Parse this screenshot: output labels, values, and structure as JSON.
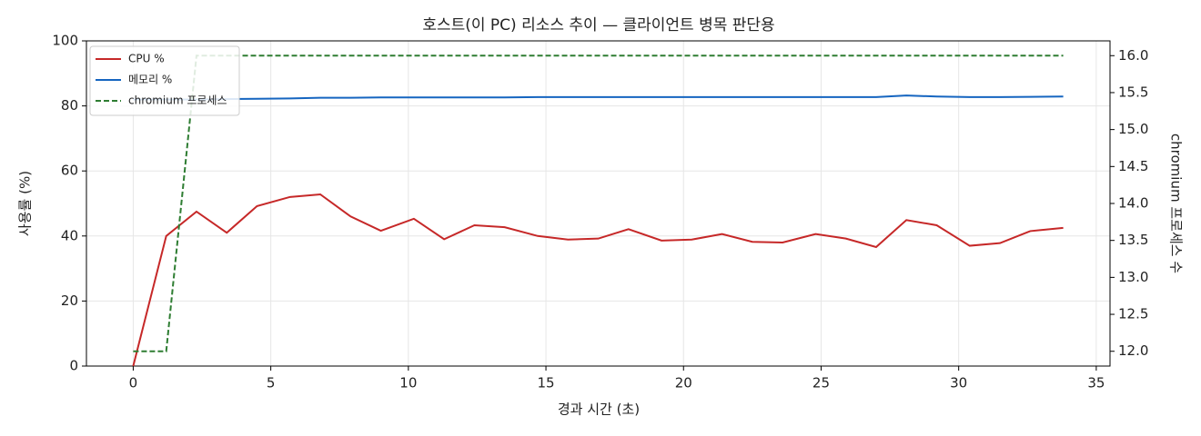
{
  "chart_data": {
    "type": "line",
    "title": "호스트(이 PC) 리소스 추이 — 클라이언트 병목 판단용",
    "xlabel": "경과 시간 (초)",
    "ylabel": "사용률 (%)",
    "y2label": "chromium 프로세스 수",
    "x": [
      0,
      1.2,
      2.3,
      3.4,
      4.5,
      5.7,
      6.8,
      7.9,
      9.0,
      10.2,
      11.3,
      12.4,
      13.5,
      14.7,
      15.8,
      16.9,
      18.0,
      19.2,
      20.3,
      21.4,
      22.5,
      23.6,
      24.8,
      25.9,
      27.0,
      28.1,
      29.2,
      30.4,
      31.5,
      32.6,
      33.8
    ],
    "series": [
      {
        "name": "CPU %",
        "color": "#c62828",
        "values": [
          0,
          40,
          47.5,
          41,
          49.2,
          52,
          52.8,
          46,
          41.6,
          45.3,
          39,
          43.3,
          42.7,
          40,
          38.9,
          39.2,
          42.1,
          38.6,
          38.9,
          40.6,
          38.2,
          38.0,
          40.6,
          39.2,
          36.6,
          44.9,
          43.3,
          37.0,
          37.8,
          41.5,
          42.5
        ]
      },
      {
        "name": "메모리 %",
        "color": "#1565c0",
        "values": [
          82,
          82,
          82,
          82.1,
          82.2,
          82.3,
          82.5,
          82.5,
          82.6,
          82.6,
          82.6,
          82.6,
          82.6,
          82.7,
          82.7,
          82.7,
          82.7,
          82.7,
          82.7,
          82.7,
          82.7,
          82.7,
          82.7,
          82.7,
          82.7,
          83.2,
          82.9,
          82.7,
          82.7,
          82.8,
          82.9
        ]
      },
      {
        "name": "chromium 프로세스",
        "color": "#2e7d32",
        "dashed": true,
        "axis": "y2",
        "values": [
          12,
          12,
          16,
          16,
          16,
          16,
          16,
          16,
          16,
          16,
          16,
          16,
          16,
          16,
          16,
          16,
          16,
          16,
          16,
          16,
          16,
          16,
          16,
          16,
          16,
          16,
          16,
          16,
          16,
          16,
          16
        ]
      }
    ],
    "xlim": [
      -1.7,
      35.5
    ],
    "xticks": [
      0,
      5,
      10,
      15,
      20,
      25,
      30,
      35
    ],
    "ylim": [
      0,
      100
    ],
    "yticks": [
      0,
      20,
      40,
      60,
      80,
      100
    ],
    "y2lim": [
      11.8,
      16.2
    ],
    "y2ticks": [
      {
        "value": 12,
        "label": "12.0"
      },
      {
        "value": 12.5,
        "label": "12.5"
      },
      {
        "value": 13,
        "label": "13.0"
      },
      {
        "value": 13.5,
        "label": "13.5"
      },
      {
        "value": 14,
        "label": "14.0"
      },
      {
        "value": 14.5,
        "label": "14.5"
      },
      {
        "value": 15,
        "label": "15.0"
      },
      {
        "value": 15.5,
        "label": "15.5"
      },
      {
        "value": 16,
        "label": "16.0"
      }
    ],
    "grid": true,
    "legend": "upper left"
  }
}
